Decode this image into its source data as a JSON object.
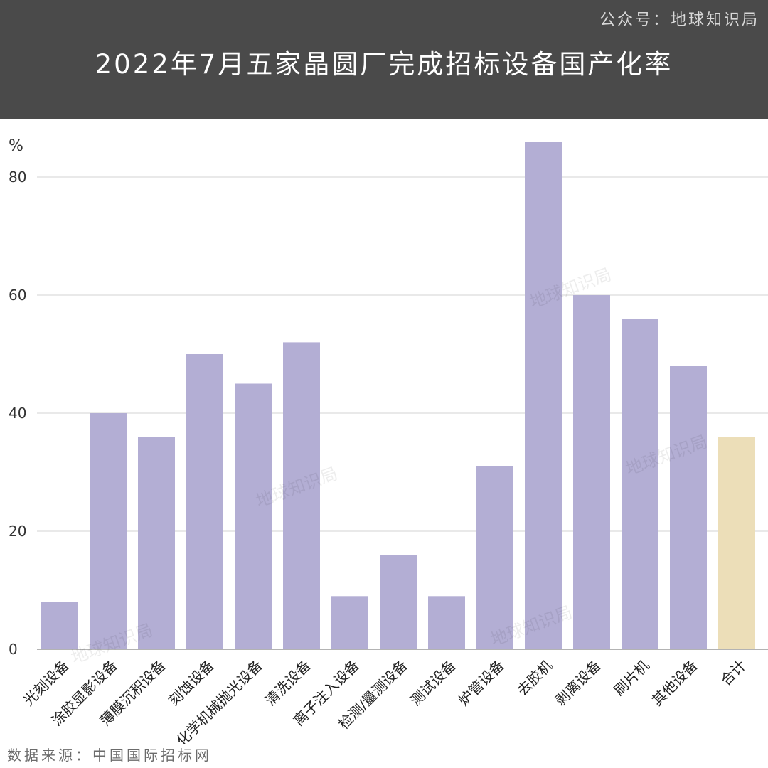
{
  "header": {
    "account": "公众号：地球知识局",
    "title": "2022年7月五家晶圆厂完成招标设备国产化率"
  },
  "footer": {
    "source": "数据来源：中国国际招标网"
  },
  "watermark": "地球知识局",
  "colors": {
    "header_bg": "#4a4a4a",
    "bar": "#b3aed4",
    "total_bar": "#ecdeb8",
    "grid": "#dcdcdc"
  },
  "chart_data": {
    "type": "bar",
    "title": "2022年7月五家晶圆厂完成招标设备国产化率",
    "ylabel": "%",
    "xlabel": "",
    "ylim": [
      0,
      88
    ],
    "yticks": [
      0,
      20,
      40,
      60,
      80
    ],
    "grid": true,
    "categories": [
      "光刻设备",
      "涂胶显影设备",
      "薄膜沉积设备",
      "刻蚀设备",
      "化学机械抛光设备",
      "清洗设备",
      "离子注入设备",
      "检测/量测设备",
      "测试设备",
      "炉管设备",
      "去胶机",
      "剥离设备",
      "刷片机",
      "其他设备",
      "合计"
    ],
    "values": [
      8,
      40,
      36,
      50,
      45,
      52,
      9,
      16,
      9,
      31,
      86,
      60,
      56,
      48,
      36
    ],
    "highlight": [
      "合计"
    ]
  }
}
